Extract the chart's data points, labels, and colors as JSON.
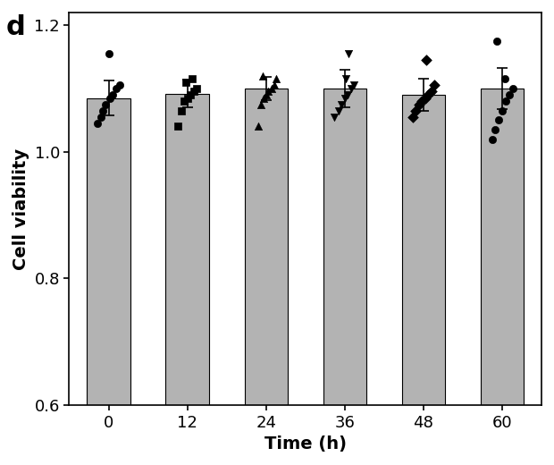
{
  "categories": [
    0,
    12,
    24,
    36,
    48,
    60
  ],
  "bar_heights": [
    1.085,
    1.092,
    1.1,
    1.1,
    1.09,
    1.1
  ],
  "bar_color": "#b3b3b3",
  "bar_edgecolor": "#000000",
  "bar_linewidth": 0.8,
  "error_bars": [
    0.028,
    0.022,
    0.018,
    0.03,
    0.025,
    0.032
  ],
  "error_capsize": 4,
  "error_linewidth": 1.2,
  "ylim": [
    0.6,
    1.22
  ],
  "yticks": [
    0.6,
    0.8,
    1.0,
    1.2
  ],
  "xlabel": "Time (h)",
  "ylabel": "Cell viability",
  "title_label": "d",
  "background_color": "#ffffff",
  "bar_width": 0.55,
  "scatter_data": {
    "0": [
      1.045,
      1.055,
      1.065,
      1.075,
      1.085,
      1.09,
      1.1,
      1.105,
      1.155
    ],
    "12": [
      1.04,
      1.065,
      1.08,
      1.085,
      1.09,
      1.095,
      1.1,
      1.11,
      1.115
    ],
    "24": [
      1.04,
      1.075,
      1.085,
      1.09,
      1.095,
      1.1,
      1.105,
      1.115,
      1.12
    ],
    "36": [
      1.055,
      1.065,
      1.075,
      1.085,
      1.09,
      1.1,
      1.105,
      1.115,
      1.155
    ],
    "48": [
      1.055,
      1.065,
      1.075,
      1.08,
      1.085,
      1.09,
      1.095,
      1.105,
      1.145
    ],
    "60": [
      1.02,
      1.035,
      1.05,
      1.065,
      1.08,
      1.09,
      1.1,
      1.115,
      1.175
    ]
  },
  "markers": [
    "o",
    "s",
    "^",
    "v",
    "D",
    "o"
  ],
  "fontsize_ticks": 13,
  "fontsize_label": 14,
  "fontsize_panel": 22
}
